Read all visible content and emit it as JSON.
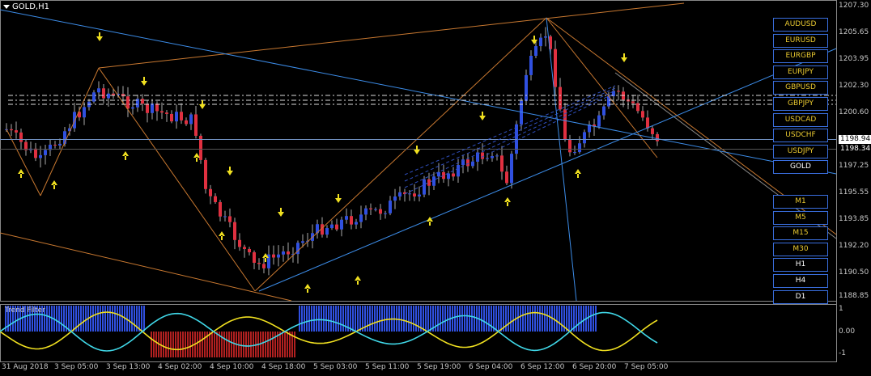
{
  "chart": {
    "symbol_title": "GOLD,H1",
    "indicator_name": "Trend Filter",
    "current_price_line_1": "1198.94",
    "current_price_line_2": "1198.34"
  },
  "price_axis": [
    "1207.30",
    "1205.65",
    "1203.95",
    "1202.30",
    "1200.60",
    "1197.25",
    "1195.55",
    "1193.85",
    "1192.20",
    "1190.50",
    "1188.85"
  ],
  "indicator_axis": [
    "1",
    "0.00",
    "-1"
  ],
  "time_axis": [
    "31 Aug 2018",
    "3 Sep 05:00",
    "3 Sep 13:00",
    "4 Sep 02:00",
    "4 Sep 10:00",
    "4 Sep 18:00",
    "5 Sep 03:00",
    "5 Sep 11:00",
    "5 Sep 19:00",
    "6 Sep 04:00",
    "6 Sep 12:00",
    "6 Sep 20:00",
    "7 Sep 05:00"
  ],
  "symbol_buttons": [
    "AUDUSD",
    "EURUSD",
    "EURGBP",
    "EURJPY",
    "GBPUSD",
    "GBPJPY",
    "USDCAD",
    "USDCHF",
    "USDJPY",
    "GOLD"
  ],
  "timeframe_buttons": [
    "M1",
    "M5",
    "M15",
    "M30",
    "H1",
    "H4",
    "D1"
  ],
  "colors": {
    "bull": "#3050e0",
    "bear": "#e03040",
    "arrow": "#f0e020",
    "zigzag": "#c87830",
    "trend": "#3c8ce8",
    "osc_yellow": "#f0e020",
    "osc_cyan": "#40d8e8"
  }
}
